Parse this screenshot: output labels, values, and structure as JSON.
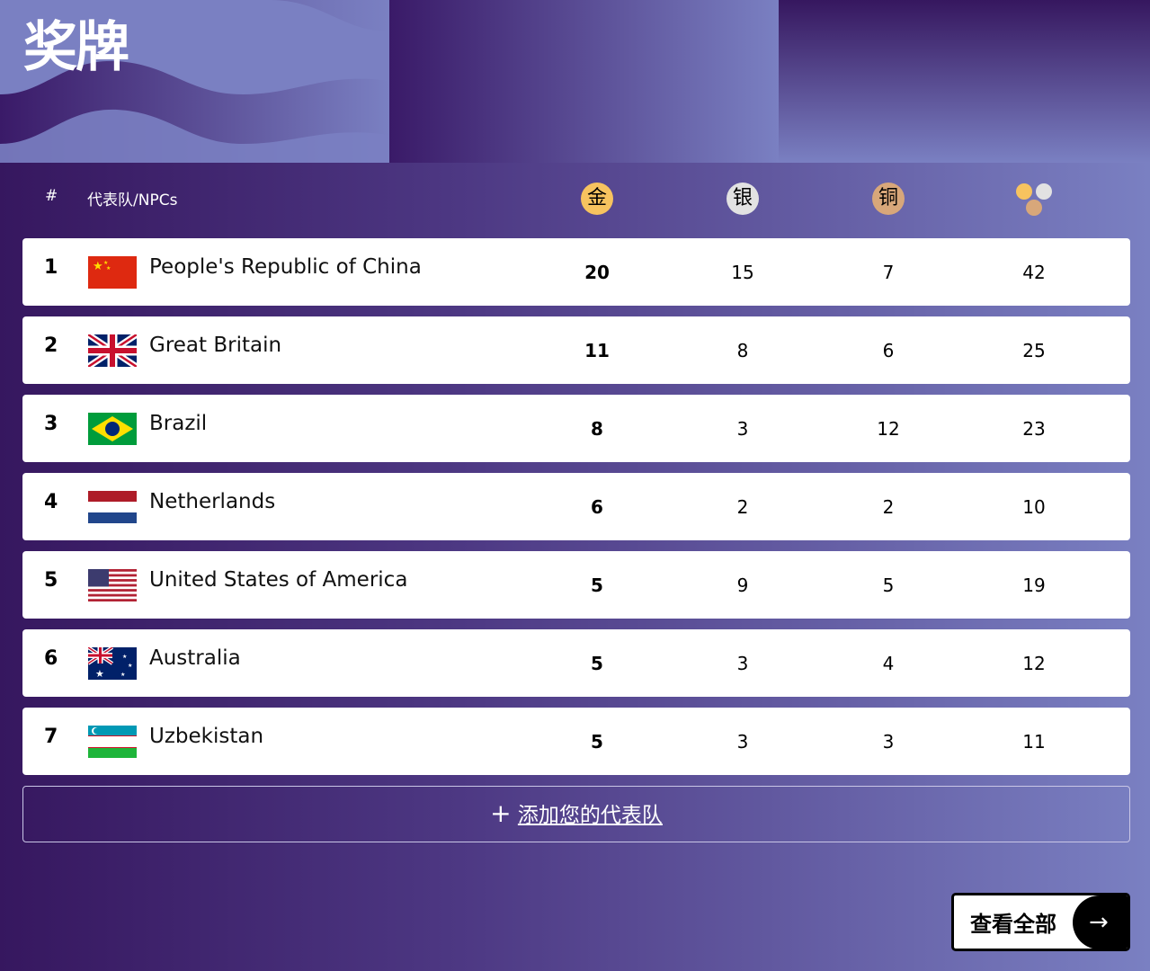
{
  "title": "奖牌",
  "header": {
    "rank": "#",
    "team": "代表队/NPCs",
    "gold": "金",
    "silver": "银",
    "bronze": "铜"
  },
  "colors": {
    "gold": "#f7c35f",
    "silver": "#e2e2e2",
    "bronze": "#d8a77a",
    "accent": "#4d3883"
  },
  "rows": [
    {
      "rank": "1",
      "name": "People's Republic of China",
      "flag": "china",
      "gold": "20",
      "silver": "15",
      "bronze": "7",
      "total": "42"
    },
    {
      "rank": "2",
      "name": "Great Britain",
      "flag": "great-britain",
      "gold": "11",
      "silver": "8",
      "bronze": "6",
      "total": "25"
    },
    {
      "rank": "3",
      "name": "Brazil",
      "flag": "brazil",
      "gold": "8",
      "silver": "3",
      "bronze": "12",
      "total": "23"
    },
    {
      "rank": "4",
      "name": "Netherlands",
      "flag": "netherlands",
      "gold": "6",
      "silver": "2",
      "bronze": "2",
      "total": "10"
    },
    {
      "rank": "5",
      "name": "United States of America",
      "flag": "usa",
      "gold": "5",
      "silver": "9",
      "bronze": "5",
      "total": "19"
    },
    {
      "rank": "6",
      "name": "Australia",
      "flag": "australia",
      "gold": "5",
      "silver": "3",
      "bronze": "4",
      "total": "12"
    },
    {
      "rank": "7",
      "name": "Uzbekistan",
      "flag": "uzbekistan",
      "gold": "5",
      "silver": "3",
      "bronze": "3",
      "total": "11"
    }
  ],
  "add_team": {
    "icon": "plus-icon",
    "label": "添加您的代表队"
  },
  "view_all": {
    "label": "查看全部",
    "icon": "arrow-right-icon"
  }
}
